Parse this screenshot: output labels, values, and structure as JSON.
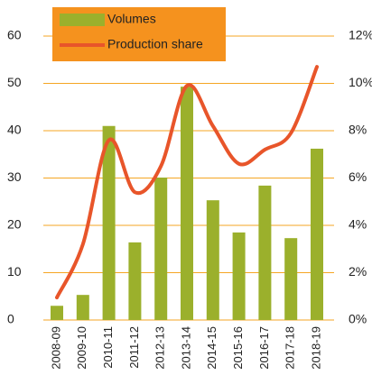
{
  "chart_data": {
    "type": "bar-line",
    "categories": [
      "2008-09",
      "2009-10",
      "2010-11",
      "2011-12",
      "2012-13",
      "2013-14",
      "2014-15",
      "2015-16",
      "2016-17",
      "2017-18",
      "2018-19"
    ],
    "series": [
      {
        "name": "Volumes",
        "type": "bar",
        "color": "#9bb02c",
        "values": [
          3,
          5.3,
          41,
          16.4,
          30.1,
          49.3,
          25.3,
          18.5,
          28.4,
          17.3,
          36.2
        ]
      },
      {
        "name": "Production share",
        "type": "line",
        "axis": "y2",
        "color": "#e8552a",
        "values": [
          0.95,
          3.2,
          7.6,
          5.4,
          6.5,
          9.9,
          8.2,
          6.6,
          7.2,
          7.9,
          10.7
        ]
      }
    ],
    "ylim": [
      0,
      60
    ],
    "yticks": [
      0,
      10,
      20,
      30,
      40,
      50,
      60
    ],
    "y2lim": [
      0,
      12
    ],
    "y2ticks": [
      {
        "value": 0,
        "label": "0%"
      },
      {
        "value": 2,
        "label": "2%"
      },
      {
        "value": 4,
        "label": "4%"
      },
      {
        "value": 6,
        "label": "6%"
      },
      {
        "value": 8,
        "label": "8%"
      },
      {
        "value": 10,
        "label": "10%"
      },
      {
        "value": 12,
        "label": "12%"
      }
    ],
    "grid": true,
    "grid_color": "#f5a623",
    "legend": {
      "position": "top-left",
      "background": "#f5921e"
    }
  }
}
